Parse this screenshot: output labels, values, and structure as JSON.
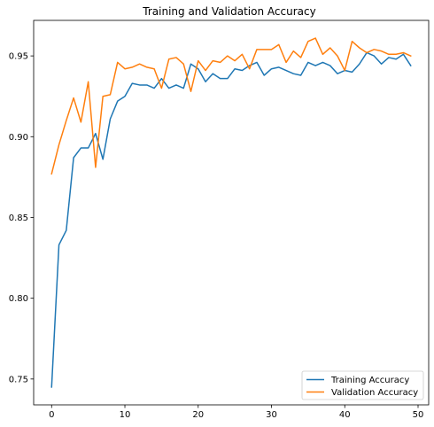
{
  "chart_data": {
    "type": "line",
    "title": "Training and Validation Accuracy",
    "xlabel": "",
    "ylabel": "",
    "xlim": [
      -2.45,
      51.45
    ],
    "ylim": [
      0.734,
      0.972
    ],
    "xticks": [
      0,
      10,
      20,
      30,
      40,
      50
    ],
    "yticks": [
      0.75,
      0.8,
      0.85,
      0.9,
      0.95
    ],
    "ytick_labels": [
      "0.75",
      "0.80",
      "0.85",
      "0.90",
      "0.95"
    ],
    "grid": false,
    "legend_position": "lower-right",
    "x": [
      0,
      1,
      2,
      3,
      4,
      5,
      6,
      7,
      8,
      9,
      10,
      11,
      12,
      13,
      14,
      15,
      16,
      17,
      18,
      19,
      20,
      21,
      22,
      23,
      24,
      25,
      26,
      27,
      28,
      29,
      30,
      31,
      32,
      33,
      34,
      35,
      36,
      37,
      38,
      39,
      40,
      41,
      42,
      43,
      44,
      45,
      46,
      47,
      48,
      49
    ],
    "series": [
      {
        "name": "Training Accuracy",
        "color": "#1f77b4",
        "values": [
          0.745,
          0.833,
          0.842,
          0.887,
          0.893,
          0.893,
          0.902,
          0.886,
          0.911,
          0.922,
          0.925,
          0.933,
          0.932,
          0.932,
          0.93,
          0.936,
          0.93,
          0.932,
          0.93,
          0.945,
          0.942,
          0.934,
          0.939,
          0.936,
          0.936,
          0.942,
          0.941,
          0.944,
          0.946,
          0.938,
          0.942,
          0.943,
          0.941,
          0.939,
          0.938,
          0.946,
          0.944,
          0.946,
          0.944,
          0.939,
          0.941,
          0.94,
          0.945,
          0.952,
          0.95,
          0.945,
          0.949,
          0.948,
          0.951,
          0.944
        ]
      },
      {
        "name": "Validation Accuracy",
        "color": "#ff7f0e",
        "values": [
          0.877,
          0.895,
          0.91,
          0.924,
          0.909,
          0.934,
          0.881,
          0.925,
          0.926,
          0.946,
          0.942,
          0.943,
          0.945,
          0.943,
          0.942,
          0.93,
          0.948,
          0.949,
          0.945,
          0.928,
          0.947,
          0.941,
          0.947,
          0.946,
          0.95,
          0.947,
          0.951,
          0.942,
          0.954,
          0.954,
          0.954,
          0.957,
          0.946,
          0.953,
          0.949,
          0.959,
          0.961,
          0.951,
          0.955,
          0.95,
          0.941,
          0.959,
          0.955,
          0.952,
          0.954,
          0.953,
          0.951,
          0.951,
          0.952,
          0.95
        ]
      }
    ]
  }
}
